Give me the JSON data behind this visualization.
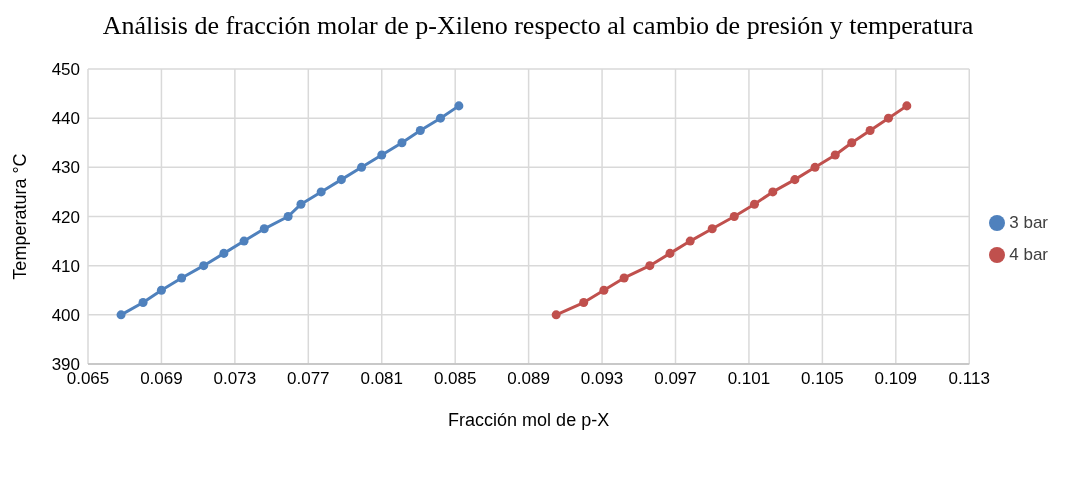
{
  "chart_data": {
    "type": "line",
    "title": "Análisis de fracción molar de p-Xileno respecto al cambio de presión y temperatura",
    "xlabel": "Fracción mol de p-X",
    "ylabel": "Temperatura °C",
    "series": [
      {
        "name": "3 bar",
        "color": "#4f81bd",
        "x": [
          0.0668,
          0.068,
          0.069,
          0.0701,
          0.0713,
          0.0724,
          0.0735,
          0.0746,
          0.0759,
          0.0766,
          0.0777,
          0.0788,
          0.0799,
          0.081,
          0.0821,
          0.0831,
          0.0842,
          0.0852
        ],
        "values": [
          400,
          402.5,
          405,
          407.5,
          410,
          412.5,
          415,
          417.5,
          420,
          422.5,
          425,
          427.5,
          430,
          432.5,
          435,
          437.5,
          440,
          442.5
        ]
      },
      {
        "name": "4 bar",
        "color": "#c0504d",
        "x": [
          0.0905,
          0.092,
          0.0931,
          0.0942,
          0.0956,
          0.0967,
          0.0978,
          0.099,
          0.1002,
          0.1013,
          0.1023,
          0.1035,
          0.1046,
          0.1057,
          0.1066,
          0.1076,
          0.1086,
          0.1096
        ],
        "values": [
          400,
          402.5,
          405,
          407.5,
          410,
          412.5,
          415,
          417.5,
          420,
          422.5,
          425,
          427.5,
          430,
          432.5,
          435,
          437.5,
          440,
          442.5
        ]
      }
    ],
    "xlim": [
      0.065,
      0.113
    ],
    "xticks": [
      {
        "value": 0.065,
        "label": "0.065"
      },
      {
        "value": 0.069,
        "label": "0.069"
      },
      {
        "value": 0.073,
        "label": "0.073"
      },
      {
        "value": 0.077,
        "label": "0.077"
      },
      {
        "value": 0.081,
        "label": "0.081"
      },
      {
        "value": 0.085,
        "label": "0.085"
      },
      {
        "value": 0.089,
        "label": "0.089"
      },
      {
        "value": 0.093,
        "label": "0.093"
      },
      {
        "value": 0.097,
        "label": "0.097"
      },
      {
        "value": 0.101,
        "label": "0.101"
      },
      {
        "value": 0.105,
        "label": "0.105"
      },
      {
        "value": 0.109,
        "label": "0.109"
      },
      {
        "value": 0.113,
        "label": "0.113"
      }
    ],
    "ylim": [
      390,
      450
    ],
    "yticks": [
      390,
      400,
      410,
      420,
      430,
      440,
      450
    ],
    "grid": true,
    "legend": "right",
    "marker": "circle",
    "line_style": "solid"
  }
}
